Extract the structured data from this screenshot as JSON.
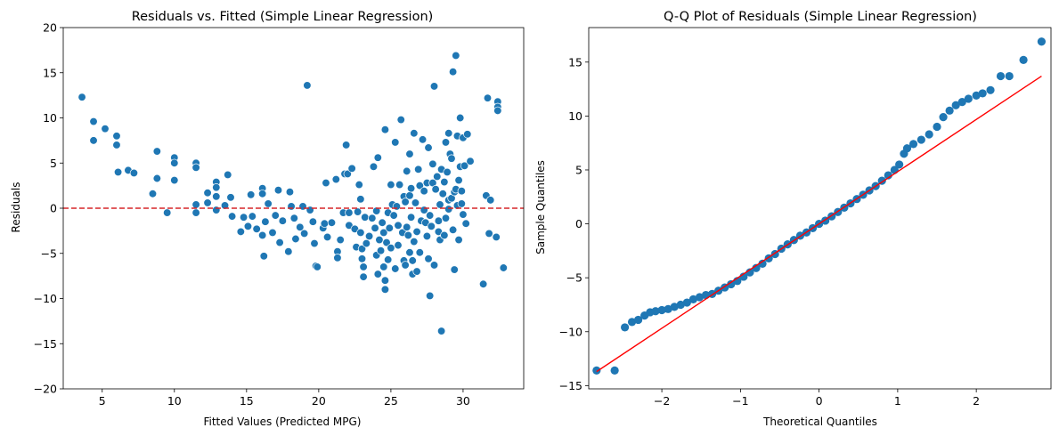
{
  "chart_data": [
    {
      "type": "scatter",
      "title": "Residuals vs. Fitted (Simple Linear Regression)",
      "xlabel": "Fitted Values (Predicted MPG)",
      "ylabel": "Residuals",
      "xlim": [
        2.3,
        34.2
      ],
      "ylim": [
        -20,
        20
      ],
      "xticks": [
        5,
        10,
        15,
        20,
        25,
        30
      ],
      "yticks": [
        -20,
        -15,
        -10,
        -5,
        0,
        5,
        10,
        15,
        20
      ],
      "point_color": "#1f77b4",
      "reference_line": {
        "y": 0,
        "style": "dashed",
        "color": "#d62728"
      },
      "points": [
        [
          3.6,
          12.3
        ],
        [
          4.4,
          9.6
        ],
        [
          4.4,
          7.5
        ],
        [
          5.2,
          8.8
        ],
        [
          6.0,
          8.0
        ],
        [
          6.0,
          7.0
        ],
        [
          6.1,
          4.0
        ],
        [
          6.8,
          4.2
        ],
        [
          7.2,
          3.9
        ],
        [
          8.5,
          1.6
        ],
        [
          8.8,
          6.3
        ],
        [
          8.8,
          3.3
        ],
        [
          9.5,
          -0.5
        ],
        [
          10.0,
          5.6
        ],
        [
          10.0,
          5.0
        ],
        [
          10.0,
          3.1
        ],
        [
          11.5,
          5.0
        ],
        [
          11.5,
          4.5
        ],
        [
          11.5,
          0.4
        ],
        [
          11.5,
          -0.5
        ],
        [
          12.3,
          1.7
        ],
        [
          12.3,
          0.6
        ],
        [
          12.9,
          2.9
        ],
        [
          12.9,
          2.3
        ],
        [
          12.9,
          1.3
        ],
        [
          12.9,
          -0.2
        ],
        [
          13.5,
          0.3
        ],
        [
          13.7,
          3.7
        ],
        [
          13.9,
          1.2
        ],
        [
          14.0,
          -0.9
        ],
        [
          14.6,
          -2.6
        ],
        [
          14.8,
          -1.0
        ],
        [
          15.1,
          -2.0
        ],
        [
          15.3,
          1.5
        ],
        [
          15.4,
          -0.9
        ],
        [
          15.7,
          -2.3
        ],
        [
          16.1,
          2.2
        ],
        [
          16.1,
          1.6
        ],
        [
          16.1,
          -3.0
        ],
        [
          16.2,
          -5.3
        ],
        [
          16.3,
          -1.5
        ],
        [
          16.5,
          0.5
        ],
        [
          16.8,
          -2.7
        ],
        [
          17.0,
          -0.8
        ],
        [
          17.2,
          2.0
        ],
        [
          17.3,
          -3.8
        ],
        [
          17.5,
          -1.4
        ],
        [
          17.9,
          -4.8
        ],
        [
          18.0,
          1.8
        ],
        [
          18.1,
          0.2
        ],
        [
          18.3,
          -1.1
        ],
        [
          18.4,
          -3.4
        ],
        [
          18.7,
          -2.1
        ],
        [
          18.9,
          0.2
        ],
        [
          19.0,
          -2.8
        ],
        [
          19.2,
          13.6
        ],
        [
          19.4,
          -0.2
        ],
        [
          19.6,
          -1.5
        ],
        [
          19.7,
          -3.9
        ],
        [
          19.8,
          -6.4
        ],
        [
          19.9,
          -6.5
        ],
        [
          20.3,
          -2.2
        ],
        [
          20.4,
          -1.7
        ],
        [
          20.5,
          2.8
        ],
        [
          20.6,
          -3.2
        ],
        [
          20.9,
          -1.6
        ],
        [
          21.2,
          3.2
        ],
        [
          21.3,
          -4.8
        ],
        [
          21.3,
          -5.5
        ],
        [
          21.5,
          -3.5
        ],
        [
          21.7,
          -0.5
        ],
        [
          21.8,
          3.8
        ],
        [
          21.9,
          7.0
        ],
        [
          22.0,
          3.8
        ],
        [
          22.1,
          -0.5
        ],
        [
          22.1,
          -1.9
        ],
        [
          22.3,
          4.4
        ],
        [
          22.5,
          -2.3
        ],
        [
          22.6,
          -4.3
        ],
        [
          22.7,
          -0.4
        ],
        [
          22.8,
          2.6
        ],
        [
          22.9,
          1.0
        ],
        [
          22.9,
          -2.7
        ],
        [
          23.0,
          -4.5
        ],
        [
          23.0,
          -5.6
        ],
        [
          23.1,
          -6.5
        ],
        [
          23.1,
          -7.6
        ],
        [
          23.2,
          -1.0
        ],
        [
          23.3,
          -3.9
        ],
        [
          23.5,
          -3.1
        ],
        [
          23.7,
          -1.1
        ],
        [
          23.8,
          4.6
        ],
        [
          23.9,
          -2.2
        ],
        [
          24.0,
          -0.3
        ],
        [
          24.0,
          -5.2
        ],
        [
          24.1,
          -7.3
        ],
        [
          24.1,
          5.6
        ],
        [
          24.2,
          -3.5
        ],
        [
          24.3,
          -4.7
        ],
        [
          24.4,
          -1.6
        ],
        [
          24.5,
          -2.7
        ],
        [
          24.5,
          -6.5
        ],
        [
          24.6,
          8.7
        ],
        [
          24.6,
          -8.0
        ],
        [
          24.6,
          -9.0
        ],
        [
          24.7,
          -3.8
        ],
        [
          24.8,
          -0.5
        ],
        [
          24.8,
          -5.7
        ],
        [
          24.9,
          -2.2
        ],
        [
          25.0,
          2.6
        ],
        [
          25.0,
          -4.4
        ],
        [
          25.1,
          0.4
        ],
        [
          25.2,
          -0.8
        ],
        [
          25.3,
          -6.7
        ],
        [
          25.3,
          7.3
        ],
        [
          25.4,
          0.2
        ],
        [
          25.5,
          -1.9
        ],
        [
          25.5,
          -4.1
        ],
        [
          25.6,
          2.6
        ],
        [
          25.7,
          9.8
        ],
        [
          25.8,
          -2.7
        ],
        [
          25.9,
          -5.8
        ],
        [
          25.9,
          1.3
        ],
        [
          26.0,
          0.7
        ],
        [
          26.0,
          -6.3
        ],
        [
          26.1,
          4.1
        ],
        [
          26.1,
          -2.1
        ],
        [
          26.2,
          -3.0
        ],
        [
          26.3,
          -4.9
        ],
        [
          26.3,
          6.0
        ],
        [
          26.3,
          1.4
        ],
        [
          26.4,
          2.2
        ],
        [
          26.4,
          -1.0
        ],
        [
          26.5,
          -5.8
        ],
        [
          26.5,
          -7.3
        ],
        [
          26.6,
          8.3
        ],
        [
          26.6,
          -3.7
        ],
        [
          26.7,
          0.6
        ],
        [
          26.8,
          -2.6
        ],
        [
          26.8,
          -7.0
        ],
        [
          26.9,
          4.3
        ],
        [
          27.0,
          2.5
        ],
        [
          27.0,
          -4.9
        ],
        [
          27.1,
          -1.4
        ],
        [
          27.2,
          7.6
        ],
        [
          27.3,
          1.9
        ],
        [
          27.3,
          -0.2
        ],
        [
          27.4,
          -1.6
        ],
        [
          27.5,
          2.8
        ],
        [
          27.5,
          -3.1
        ],
        [
          27.6,
          -5.6
        ],
        [
          27.6,
          6.7
        ],
        [
          27.7,
          -9.7
        ],
        [
          27.7,
          -0.8
        ],
        [
          27.8,
          -2.0
        ],
        [
          27.9,
          2.8
        ],
        [
          27.9,
          4.9
        ],
        [
          28.0,
          13.5
        ],
        [
          28.0,
          -6.3
        ],
        [
          28.1,
          2.1
        ],
        [
          28.2,
          3.5
        ],
        [
          28.3,
          -1.4
        ],
        [
          28.3,
          -2.6
        ],
        [
          28.4,
          -3.5
        ],
        [
          28.4,
          0.4
        ],
        [
          28.5,
          -13.6
        ],
        [
          28.5,
          4.3
        ],
        [
          28.6,
          1.6
        ],
        [
          28.7,
          -3.0
        ],
        [
          28.7,
          2.9
        ],
        [
          28.8,
          7.3
        ],
        [
          28.8,
          -1.1
        ],
        [
          28.9,
          4.0
        ],
        [
          29.0,
          8.3
        ],
        [
          29.0,
          0.9
        ],
        [
          29.0,
          -0.1
        ],
        [
          29.1,
          6.0
        ],
        [
          29.2,
          1.1
        ],
        [
          29.2,
          5.5
        ],
        [
          29.3,
          15.1
        ],
        [
          29.3,
          -2.4
        ],
        [
          29.4,
          1.8
        ],
        [
          29.4,
          -6.8
        ],
        [
          29.5,
          16.9
        ],
        [
          29.5,
          2.1
        ],
        [
          29.6,
          0.3
        ],
        [
          29.6,
          8.0
        ],
        [
          29.7,
          3.1
        ],
        [
          29.7,
          -3.5
        ],
        [
          29.8,
          10.0
        ],
        [
          29.8,
          4.6
        ],
        [
          29.9,
          1.9
        ],
        [
          29.9,
          0.5
        ],
        [
          30.0,
          7.8
        ],
        [
          30.0,
          -0.7
        ],
        [
          30.1,
          4.7
        ],
        [
          30.2,
          -1.7
        ],
        [
          30.3,
          8.2
        ],
        [
          30.5,
          5.2
        ],
        [
          31.4,
          -8.4
        ],
        [
          31.6,
          1.4
        ],
        [
          31.7,
          12.2
        ],
        [
          31.8,
          -2.8
        ],
        [
          31.9,
          0.9
        ],
        [
          32.3,
          -3.2
        ],
        [
          32.4,
          11.8
        ],
        [
          32.4,
          11.2
        ],
        [
          32.4,
          10.8
        ],
        [
          32.8,
          -6.6
        ]
      ]
    },
    {
      "type": "scatter",
      "title": "Q-Q Plot of Residuals (Simple Linear Regression)",
      "xlabel": "Theoretical Quantiles",
      "ylabel": "Sample Quantiles",
      "xlim": [
        -2.93,
        2.95
      ],
      "ylim": [
        -15.3,
        18.2
      ],
      "xticks": [
        -2,
        -1,
        0,
        1,
        2
      ],
      "yticks": [
        -15,
        -10,
        -5,
        0,
        5,
        10,
        15
      ],
      "point_color": "#1f77b4",
      "reference_line": {
        "from": [
          -2.83,
          -13.7
        ],
        "to": [
          2.83,
          13.7
        ],
        "color": "#ff0000"
      },
      "points": [
        [
          -2.83,
          -13.6
        ],
        [
          -2.6,
          -13.6
        ],
        [
          -2.47,
          -9.6
        ],
        [
          -2.38,
          -9.1
        ],
        [
          -2.3,
          -8.9
        ],
        [
          -2.22,
          -8.5
        ],
        [
          -2.15,
          -8.2
        ],
        [
          -2.08,
          -8.1
        ],
        [
          -2.0,
          -8.0
        ],
        [
          -1.92,
          -7.9
        ],
        [
          -1.84,
          -7.7
        ],
        [
          -1.76,
          -7.5
        ],
        [
          -1.68,
          -7.3
        ],
        [
          -1.6,
          -7.0
        ],
        [
          -1.52,
          -6.8
        ],
        [
          -1.44,
          -6.6
        ],
        [
          -1.36,
          -6.5
        ],
        [
          -1.28,
          -6.2
        ],
        [
          -1.2,
          -5.9
        ],
        [
          -1.12,
          -5.6
        ],
        [
          -1.04,
          -5.3
        ],
        [
          -0.96,
          -4.9
        ],
        [
          -0.88,
          -4.5
        ],
        [
          -0.8,
          -4.1
        ],
        [
          -0.72,
          -3.7
        ],
        [
          -0.64,
          -3.2
        ],
        [
          -0.56,
          -2.8
        ],
        [
          -0.48,
          -2.3
        ],
        [
          -0.4,
          -1.9
        ],
        [
          -0.32,
          -1.5
        ],
        [
          -0.24,
          -1.1
        ],
        [
          -0.16,
          -0.8
        ],
        [
          -0.08,
          -0.4
        ],
        [
          0.0,
          0.0
        ],
        [
          0.08,
          0.3
        ],
        [
          0.16,
          0.7
        ],
        [
          0.24,
          1.1
        ],
        [
          0.32,
          1.5
        ],
        [
          0.4,
          1.9
        ],
        [
          0.48,
          2.3
        ],
        [
          0.56,
          2.7
        ],
        [
          0.64,
          3.1
        ],
        [
          0.72,
          3.5
        ],
        [
          0.8,
          4.0
        ],
        [
          0.88,
          4.5
        ],
        [
          0.96,
          5.0
        ],
        [
          1.02,
          5.5
        ],
        [
          1.08,
          6.5
        ],
        [
          1.12,
          7.0
        ],
        [
          1.2,
          7.4
        ],
        [
          1.3,
          7.8
        ],
        [
          1.4,
          8.3
        ],
        [
          1.5,
          9.0
        ],
        [
          1.58,
          9.9
        ],
        [
          1.66,
          10.5
        ],
        [
          1.74,
          11.0
        ],
        [
          1.82,
          11.3
        ],
        [
          1.9,
          11.6
        ],
        [
          2.0,
          11.9
        ],
        [
          2.08,
          12.1
        ],
        [
          2.18,
          12.4
        ],
        [
          2.31,
          13.7
        ],
        [
          2.42,
          13.7
        ],
        [
          2.6,
          15.2
        ],
        [
          2.83,
          16.9
        ]
      ]
    }
  ]
}
